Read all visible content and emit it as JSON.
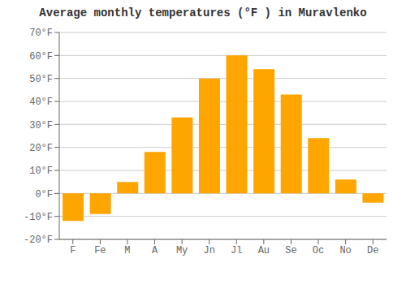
{
  "chart_data": {
    "type": "bar",
    "title": "Average monthly temperatures (°F ) in Muravlenko",
    "categories": [
      "F",
      "Fe",
      "M",
      "A",
      "My",
      "Jn",
      "Jl",
      "Au",
      "Se",
      "Oc",
      "No",
      "De"
    ],
    "values": [
      -12,
      -9,
      5,
      18,
      33,
      50,
      60,
      54,
      43,
      24,
      6,
      -4
    ],
    "color": "#FFA500",
    "ylim": [
      -20,
      70
    ],
    "yticks": [
      {
        "value": -20,
        "label": "-20°F"
      },
      {
        "value": -10,
        "label": "-10°F"
      },
      {
        "value": 0,
        "label": "0°F"
      },
      {
        "value": 10,
        "label": "10°F"
      },
      {
        "value": 20,
        "label": "20°F"
      },
      {
        "value": 30,
        "label": "30°F"
      },
      {
        "value": 40,
        "label": "40°F"
      },
      {
        "value": 50,
        "label": "50°F"
      },
      {
        "value": 60,
        "label": "60°F"
      },
      {
        "value": 70,
        "label": "70°F"
      }
    ],
    "grid": true
  }
}
